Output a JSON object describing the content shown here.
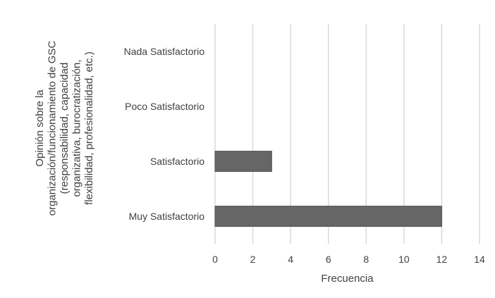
{
  "chart_data": {
    "type": "bar",
    "orientation": "horizontal",
    "categories": [
      "Nada Satisfactorio",
      "Poco Satisfactorio",
      "Satisfactorio",
      "Muy Satisfactorio"
    ],
    "values": [
      0,
      0,
      3,
      12
    ],
    "xlabel": "Frecuencia",
    "ylabel_lines": [
      "Opinión sobre la",
      "organización/funcionamiento de GSC",
      "(responsabilidad, capacidad",
      "organizativa, burocratización,",
      "flexibilidad, profesionalidad, etc.)"
    ],
    "xlim": [
      0,
      14
    ],
    "xticks": [
      0,
      2,
      4,
      6,
      8,
      10,
      12,
      14
    ],
    "grid": "vertical",
    "legend": "none",
    "bar_color": "#666666",
    "grid_color": "#d9d9d9",
    "text_color": "#404040"
  }
}
